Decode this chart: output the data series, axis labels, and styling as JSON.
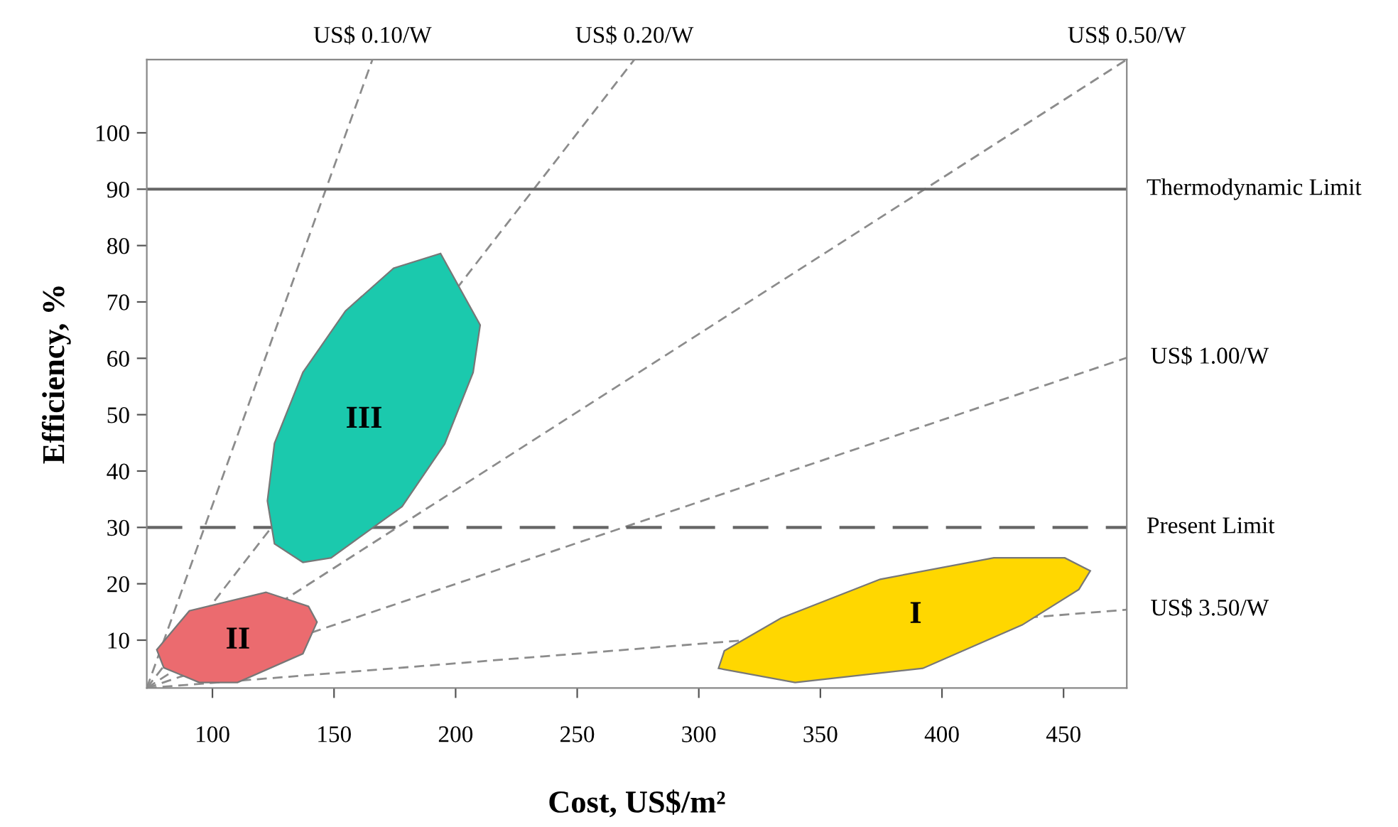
{
  "chart_data": {
    "type": "line",
    "xlabel": "Cost, US$/m²",
    "ylabel": "Efficiency, %",
    "xlim": [
      73,
      476
    ],
    "ylim": [
      1.5,
      113
    ],
    "xticks": [
      100,
      150,
      200,
      250,
      300,
      350,
      400,
      450
    ],
    "yticks": [
      10,
      20,
      30,
      40,
      50,
      60,
      70,
      80,
      90,
      100
    ],
    "grid": false,
    "legend": false,
    "series": [
      {
        "name": "US$ 0.10/W",
        "line_style": "dashed",
        "color": "#8c8c8c",
        "x": [
          73,
          165.8
        ],
        "values": [
          1.5,
          113
        ]
      },
      {
        "name": "US$ 0.20/W",
        "line_style": "dashed",
        "color": "#8c8c8c",
        "x": [
          73,
          273.5
        ],
        "values": [
          1.5,
          113
        ]
      },
      {
        "name": "US$ 0.50/W",
        "line_style": "dashed",
        "color": "#8c8c8c",
        "x": [
          73,
          476
        ],
        "values": [
          1.5,
          113
        ]
      },
      {
        "name": "US$ 1.00/W",
        "line_style": "dashed",
        "color": "#8c8c8c",
        "x": [
          73,
          476
        ],
        "values": [
          1.5,
          60.1
        ]
      },
      {
        "name": "US$ 3.50/W",
        "line_style": "dashed",
        "color": "#8c8c8c",
        "x": [
          73,
          476
        ],
        "values": [
          1.5,
          15.4
        ]
      },
      {
        "name": "III",
        "type": "area",
        "color": "#1bc9ad",
        "x": [
          193.8,
          210.1,
          207.2,
          195.5,
          178.0,
          148.8,
          137.2,
          125.5,
          122.6,
          125.5,
          137.2,
          154.7,
          174.5
        ],
        "values": [
          78.6,
          65.9,
          57.5,
          44.8,
          33.7,
          24.6,
          23.8,
          27.1,
          34.7,
          44.9,
          57.5,
          68.4,
          76.0
        ]
      },
      {
        "name": "II",
        "type": "area",
        "color": "#eb6b6f",
        "x": [
          77.1,
          90.5,
          122.0,
          139.5,
          143.0,
          137.2,
          110.3,
          94.6,
          80.0
        ],
        "values": [
          8.3,
          15.2,
          18.5,
          16.0,
          13.2,
          7.6,
          2.5,
          2.5,
          5.1
        ]
      },
      {
        "name": "I",
        "type": "area",
        "color": "#ffd700",
        "x": [
          308.1,
          339.6,
          392.1,
          433.0,
          456.3,
          461.0,
          450.5,
          421.3,
          374.6,
          333.8,
          310.5
        ],
        "values": [
          5.0,
          2.5,
          5.0,
          12.7,
          19.0,
          22.3,
          24.6,
          24.6,
          20.8,
          13.9,
          8.1
        ]
      }
    ],
    "ref_lines": [
      {
        "axis": "y",
        "value": 90,
        "label": "Thermodynamic Limit",
        "color": "#666666",
        "line_style": "solid"
      },
      {
        "axis": "y",
        "value": 30,
        "label": "Present Limit",
        "color": "#666666",
        "line_style": "dashed"
      }
    ]
  }
}
